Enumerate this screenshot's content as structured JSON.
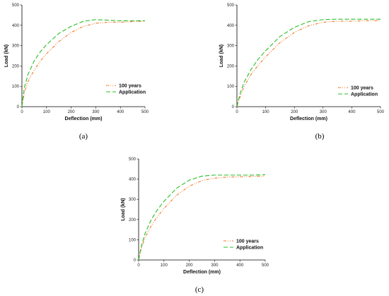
{
  "chart_data": [
    {
      "type": "line",
      "panel_label": "(a)",
      "xlabel": "Deflection (mm)",
      "ylabel": "Load (kN)",
      "xlim": [
        0,
        500
      ],
      "ylim": [
        0,
        500
      ],
      "x_ticks": [
        "0",
        "100",
        "200",
        "300",
        "400",
        "500"
      ],
      "y_ticks": [
        "0",
        "100",
        "200",
        "300",
        "400",
        "500"
      ],
      "grid": false,
      "legend": "center-right",
      "series": [
        {
          "name": "100 years",
          "color": "#f07a2a",
          "dash": "dash-dot-dot",
          "x": [
            0,
            10,
            25,
            50,
            75,
            100,
            150,
            200,
            250,
            300,
            350,
            400,
            450,
            500
          ],
          "y": [
            0,
            70,
            125,
            180,
            225,
            260,
            320,
            365,
            395,
            410,
            415,
            415,
            418,
            420
          ]
        },
        {
          "name": "Application",
          "color": "#28c028",
          "dash": "dash",
          "x": [
            0,
            10,
            25,
            50,
            75,
            100,
            150,
            200,
            250,
            300,
            350,
            400,
            450,
            500
          ],
          "y": [
            0,
            95,
            160,
            225,
            270,
            305,
            360,
            395,
            420,
            428,
            425,
            422,
            422,
            422
          ]
        }
      ]
    },
    {
      "type": "line",
      "panel_label": "(b)",
      "xlabel": "Deflection (mm)",
      "ylabel": "Load (kN)",
      "xlim": [
        0,
        500
      ],
      "ylim": [
        0,
        500
      ],
      "x_ticks": [
        "0",
        "100",
        "200",
        "300",
        "400",
        "500"
      ],
      "y_ticks": [
        "0",
        "100",
        "200",
        "300",
        "400",
        "500"
      ],
      "grid": false,
      "legend": "center-right",
      "series": [
        {
          "name": "100 years",
          "color": "#f07a2a",
          "dash": "dash-dot-dot",
          "x": [
            0,
            10,
            25,
            50,
            75,
            100,
            150,
            200,
            250,
            300,
            350,
            400,
            450,
            500
          ],
          "y": [
            0,
            45,
            100,
            160,
            205,
            245,
            315,
            365,
            398,
            415,
            420,
            420,
            422,
            423
          ]
        },
        {
          "name": "Application",
          "color": "#28c028",
          "dash": "dash",
          "x": [
            0,
            10,
            25,
            50,
            75,
            100,
            150,
            200,
            250,
            300,
            350,
            400,
            450,
            500
          ],
          "y": [
            0,
            60,
            120,
            185,
            235,
            275,
            345,
            390,
            418,
            428,
            430,
            430,
            430,
            430
          ]
        }
      ]
    },
    {
      "type": "line",
      "panel_label": "(c)",
      "xlabel": "Deflection (mm)",
      "ylabel": "Load (kN)",
      "xlim": [
        0,
        500
      ],
      "ylim": [
        0,
        500
      ],
      "x_ticks": [
        "0",
        "100",
        "200",
        "300",
        "400",
        "500"
      ],
      "y_ticks": [
        "0",
        "100",
        "200",
        "300",
        "400",
        "500"
      ],
      "grid": false,
      "legend": "center-right",
      "series": [
        {
          "name": "100 years",
          "color": "#f07a2a",
          "dash": "dash-dot-dot",
          "x": [
            0,
            10,
            25,
            50,
            75,
            100,
            150,
            200,
            250,
            300,
            350,
            400,
            450,
            500
          ],
          "y": [
            0,
            55,
            110,
            170,
            215,
            255,
            320,
            365,
            393,
            405,
            410,
            412,
            414,
            415
          ]
        },
        {
          "name": "Application",
          "color": "#28c028",
          "dash": "dash",
          "x": [
            0,
            10,
            25,
            50,
            75,
            100,
            150,
            200,
            250,
            300,
            350,
            400,
            450,
            500
          ],
          "y": [
            0,
            65,
            130,
            200,
            250,
            290,
            355,
            395,
            415,
            420,
            420,
            420,
            420,
            422
          ]
        }
      ]
    }
  ]
}
